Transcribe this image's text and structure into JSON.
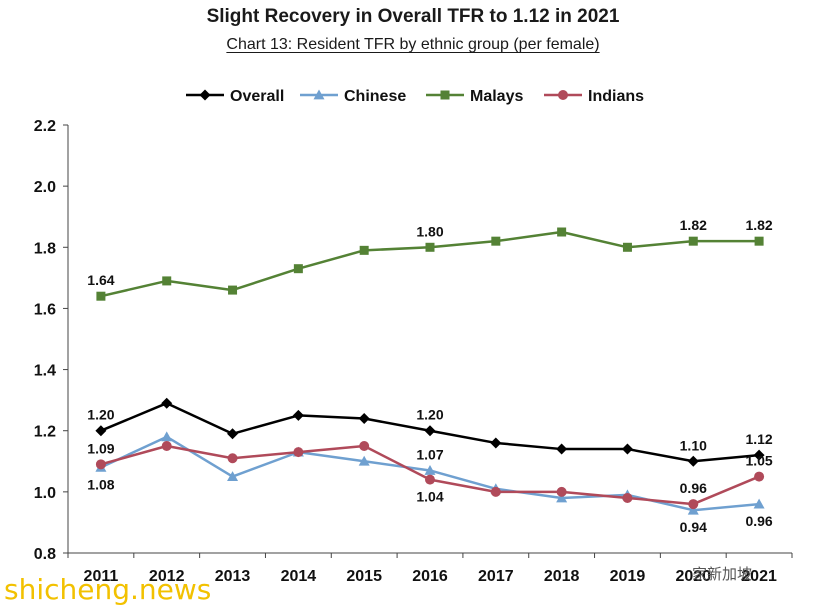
{
  "chart_data": {
    "type": "line",
    "title": "Slight Recovery in Overall TFR to 1.12 in 2021",
    "subtitle": "Chart 13: Resident TFR by ethnic group (per female)",
    "xlabel": "",
    "ylabel": "",
    "x": [
      "2011",
      "2012",
      "2013",
      "2014",
      "2015",
      "2016",
      "2017",
      "2018",
      "2019",
      "2020",
      "2021"
    ],
    "ylim": [
      0.8,
      2.2
    ],
    "yticks": [
      "0.8",
      "1.0",
      "1.2",
      "1.4",
      "1.6",
      "1.8",
      "2.0",
      "2.2"
    ],
    "grid": false,
    "legend_position": "top",
    "series": [
      {
        "name": "Overall",
        "color": "#000000",
        "marker": "diamond",
        "values": [
          1.2,
          1.29,
          1.19,
          1.25,
          1.24,
          1.2,
          1.16,
          1.14,
          1.14,
          1.1,
          1.12
        ]
      },
      {
        "name": "Chinese",
        "color": "#6fa0d0",
        "marker": "triangle",
        "values": [
          1.08,
          1.18,
          1.05,
          1.13,
          1.1,
          1.07,
          1.01,
          0.98,
          0.99,
          0.94,
          0.96
        ]
      },
      {
        "name": "Malays",
        "color": "#548235",
        "marker": "square",
        "values": [
          1.64,
          1.69,
          1.66,
          1.73,
          1.79,
          1.8,
          1.82,
          1.85,
          1.8,
          1.82,
          1.82
        ]
      },
      {
        "name": "Indians",
        "color": "#b04a5a",
        "marker": "circle",
        "values": [
          1.09,
          1.15,
          1.11,
          1.13,
          1.15,
          1.04,
          1.0,
          1.0,
          0.98,
          0.96,
          1.05
        ]
      }
    ],
    "annotations": [
      {
        "text": "1.64",
        "x": "2011",
        "series": "Malays",
        "pos": "above"
      },
      {
        "text": "1.80",
        "x": "2016",
        "series": "Malays",
        "pos": "above"
      },
      {
        "text": "1.82",
        "x": "2020",
        "series": "Malays",
        "pos": "above"
      },
      {
        "text": "1.82",
        "x": "2021",
        "series": "Malays",
        "pos": "above"
      },
      {
        "text": "1.20",
        "x": "2011",
        "series": "Overall",
        "pos": "above"
      },
      {
        "text": "1.20",
        "x": "2016",
        "series": "Overall",
        "pos": "above"
      },
      {
        "text": "1.10",
        "x": "2020",
        "series": "Overall",
        "pos": "above"
      },
      {
        "text": "1.12",
        "x": "2021",
        "series": "Overall",
        "pos": "above"
      },
      {
        "text": "1.09",
        "x": "2011",
        "series": "Indians",
        "pos": "above"
      },
      {
        "text": "1.08",
        "x": "2011",
        "series": "Chinese",
        "pos": "below"
      },
      {
        "text": "1.07",
        "x": "2016",
        "series": "Chinese",
        "pos": "above"
      },
      {
        "text": "1.04",
        "x": "2016",
        "series": "Indians",
        "pos": "below"
      },
      {
        "text": "0.96",
        "x": "2020",
        "series": "Indians",
        "pos": "above"
      },
      {
        "text": "0.94",
        "x": "2020",
        "series": "Chinese",
        "pos": "below"
      },
      {
        "text": "1.05",
        "x": "2021",
        "series": "Indians",
        "pos": "above"
      },
      {
        "text": "0.96",
        "x": "2021",
        "series": "Chinese",
        "pos": "below"
      }
    ]
  },
  "watermark": {
    "left": "shicheng.news",
    "right": "家新加坡"
  }
}
